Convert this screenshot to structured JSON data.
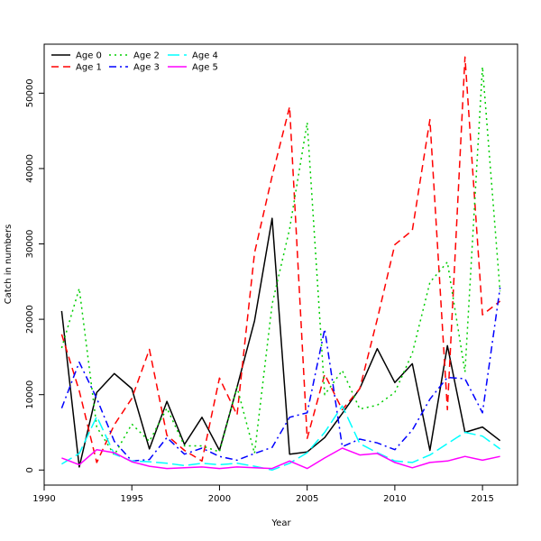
{
  "chart_data": {
    "type": "line",
    "title": "",
    "xlabel": "Year",
    "ylabel": "Catch in numbers",
    "xlim": [
      1990,
      2017
    ],
    "ylim": [
      -2000,
      56500
    ],
    "x_ticks": [
      1990,
      1995,
      2000,
      2005,
      2010,
      2015
    ],
    "y_ticks": [
      0,
      10000,
      20000,
      30000,
      40000,
      50000
    ],
    "grid": false,
    "legend_position": "top-left",
    "x": [
      1991,
      1992,
      1993,
      1994,
      1995,
      1996,
      1997,
      1998,
      1999,
      2000,
      2001,
      2002,
      2003,
      2004,
      2005,
      2006,
      2007,
      2008,
      2009,
      2010,
      2011,
      2012,
      2013,
      2014,
      2015,
      2016
    ],
    "series": [
      {
        "name": "Age 0",
        "color": "#000000",
        "dash": "solid",
        "values": [
          21100,
          400,
          10300,
          12800,
          10800,
          2800,
          9100,
          3400,
          7000,
          2600,
          11000,
          19800,
          33400,
          2100,
          2400,
          4300,
          7500,
          10800,
          16100,
          11600,
          14100,
          2600,
          16500,
          5000,
          5700,
          3900
        ]
      },
      {
        "name": "Age 1",
        "color": "#ff0000",
        "dash": "dashed",
        "values": [
          18000,
          10500,
          1000,
          6000,
          9500,
          16000,
          4600,
          2600,
          1200,
          12200,
          7300,
          28800,
          39000,
          48200,
          4200,
          12700,
          8000,
          10800,
          20000,
          29900,
          31800,
          46500,
          8000,
          54800,
          20600,
          22400
        ]
      },
      {
        "name": "Age 2",
        "color": "#00cd00",
        "dash": "dotted",
        "values": [
          16200,
          24100,
          5700,
          2000,
          6100,
          3800,
          8200,
          3200,
          3200,
          2400,
          11000,
          2200,
          22000,
          32000,
          46100,
          10000,
          13200,
          8100,
          8600,
          10300,
          15500,
          24900,
          27600,
          13000,
          53500,
          23700
        ]
      },
      {
        "name": "Age 3",
        "color": "#0000ff",
        "dash": "dashdot",
        "values": [
          8200,
          14300,
          9500,
          3800,
          1200,
          1400,
          4300,
          2100,
          2900,
          1800,
          1300,
          2200,
          3000,
          7000,
          7600,
          18700,
          3100,
          4100,
          3600,
          2700,
          5300,
          9400,
          12300,
          12100,
          7600,
          24200
        ]
      },
      {
        "name": "Age 4",
        "color": "#00ffff",
        "dash": "longdash",
        "values": [
          800,
          2200,
          7100,
          2100,
          1200,
          1100,
          900,
          600,
          900,
          700,
          900,
          500,
          0,
          900,
          2300,
          5000,
          8500,
          3500,
          2300,
          1200,
          1000,
          2000,
          3500,
          5000,
          4500,
          2800
        ]
      },
      {
        "name": "Age 5",
        "color": "#ff00ff",
        "dash": "solid",
        "values": [
          1600,
          700,
          2700,
          2300,
          1100,
          500,
          200,
          300,
          400,
          200,
          400,
          300,
          200,
          1200,
          200,
          1600,
          2900,
          2000,
          2200,
          1000,
          300,
          1000,
          1200,
          1800,
          1300,
          1800
        ]
      }
    ]
  }
}
